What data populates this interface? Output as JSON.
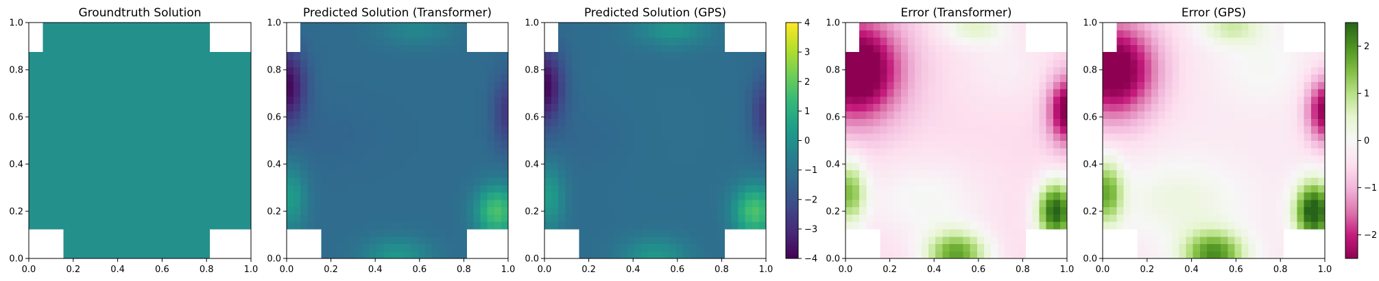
{
  "chart_data": [
    {
      "type": "heatmap",
      "title": "Groundtruth Solution",
      "xlim": [
        0,
        1
      ],
      "ylim": [
        0,
        1
      ],
      "xticks": [
        "0.0",
        "0.2",
        "0.4",
        "0.6",
        "0.8",
        "1.0"
      ],
      "yticks": [
        "0.0",
        "0.2",
        "0.4",
        "0.6",
        "0.8",
        "1.0"
      ],
      "colormap": "viridis",
      "value_range": [
        -4,
        4
      ],
      "field": "constant",
      "uniform_value": 0
    },
    {
      "type": "heatmap",
      "title": "Predicted Solution (Transformer)",
      "xlim": [
        0,
        1
      ],
      "ylim": [
        0,
        1
      ],
      "xticks": [
        "0.0",
        "0.2",
        "0.4",
        "0.6",
        "0.8",
        "1.0"
      ],
      "yticks": [
        "0.0",
        "0.2",
        "0.4",
        "0.6",
        "0.8",
        "1.0"
      ],
      "colormap": "viridis",
      "value_range": [
        -4,
        4
      ],
      "field": "prediction",
      "variant": 0
    },
    {
      "type": "heatmap",
      "title": "Predicted Solution (GPS)",
      "xlim": [
        0,
        1
      ],
      "ylim": [
        0,
        1
      ],
      "xticks": [
        "0.0",
        "0.2",
        "0.4",
        "0.6",
        "0.8",
        "1.0"
      ],
      "yticks": [
        "0.0",
        "0.2",
        "0.4",
        "0.6",
        "0.8",
        "1.0"
      ],
      "colormap": "viridis",
      "value_range": [
        -4,
        4
      ],
      "field": "prediction",
      "variant": 1
    },
    {
      "type": "heatmap",
      "title": "Error (Transformer)",
      "xlim": [
        0,
        1
      ],
      "ylim": [
        0,
        1
      ],
      "xticks": [
        "0.0",
        "0.2",
        "0.4",
        "0.6",
        "0.8",
        "1.0"
      ],
      "yticks": [
        "0.0",
        "0.2",
        "0.4",
        "0.6",
        "0.8",
        "1.0"
      ],
      "colormap": "PiYG",
      "value_range": [
        -2.5,
        2.5
      ],
      "field": "error",
      "variant": 0
    },
    {
      "type": "heatmap",
      "title": "Error (GPS)",
      "xlim": [
        0,
        1
      ],
      "ylim": [
        0,
        1
      ],
      "xticks": [
        "0.0",
        "0.2",
        "0.4",
        "0.6",
        "0.8",
        "1.0"
      ],
      "yticks": [
        "0.0",
        "0.2",
        "0.4",
        "0.6",
        "0.8",
        "1.0"
      ],
      "colormap": "PiYG",
      "value_range": [
        -2.5,
        2.5
      ],
      "field": "error",
      "variant": 1
    }
  ],
  "colorbars": [
    {
      "colormap": "viridis",
      "range": [
        -4,
        4
      ],
      "ticks": [
        4,
        3,
        2,
        1,
        0,
        -1,
        -2,
        -3,
        -4
      ],
      "tick_labels": [
        "4",
        "3",
        "2",
        "1",
        "0",
        "−1",
        "−2",
        "−3",
        "−4"
      ]
    },
    {
      "colormap": "PiYG",
      "range": [
        -2.5,
        2.5
      ],
      "ticks": [
        2,
        1,
        0,
        -1,
        -2
      ],
      "tick_labels": [
        "2",
        "1",
        "0",
        "−1",
        "−2"
      ]
    }
  ],
  "grid": false
}
